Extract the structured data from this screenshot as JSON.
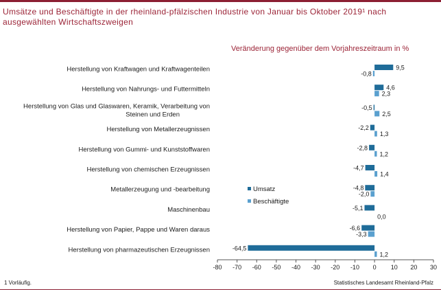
{
  "title": "Umsätze und Beschäftigte in der rheinland-pfälzischen Industrie von Januar bis Oktober 2019¹ nach ausgewählten Wirtschaftszweigen",
  "footnote": "1 Vorläufig.",
  "source": "Statistisches Landesamt Rheinland-Pfalz",
  "colors": {
    "accent": "#9b2336",
    "umsatz": "#1f6c99",
    "beschaeftigte": "#5aa0cf"
  },
  "chart_data": {
    "type": "bar",
    "orientation": "horizontal",
    "title": "Veränderung gegenüber dem Vorjahreszeitraum in %",
    "categories": [
      "Herstellung von Kraftwagen und Kraftwagenteilen",
      "Herstellung von Nahrungs- und Futtermitteln",
      "Herstellung von Glas und Glaswaren, Keramik, Verarbeitung von Steinen und Erden",
      "Herstellung von Metallerzeugnissen",
      "Herstellung von Gummi- und Kunststoffwaren",
      "Herstellung von chemischen Erzeugnissen",
      "Metallerzeugung und -bearbeitung",
      "Maschinenbau",
      "Herstellung von Papier, Pappe und Waren daraus",
      "Herstellung von pharmazeutischen Erzeugnissen"
    ],
    "series": [
      {
        "name": "Umsatz",
        "color": "#1f6c99",
        "values": [
          9.5,
          4.6,
          -0.5,
          -2.2,
          -2.8,
          -4.7,
          -4.8,
          -5.1,
          -6.6,
          -64.5
        ],
        "labels": [
          "9,5",
          "4,6",
          "-0,5",
          "-2,2",
          "-2,8",
          "-4,7",
          "-4,8",
          "-5,1",
          "-6,6",
          "-64,5"
        ]
      },
      {
        "name": "Beschäftigte",
        "color": "#5aa0cf",
        "values": [
          -0.8,
          2.3,
          2.5,
          1.3,
          1.2,
          1.4,
          -2.0,
          0.0,
          -3.3,
          1.2
        ],
        "labels": [
          "-0,8",
          "2,3",
          "2,5",
          "1,3",
          "1,2",
          "1,4",
          "-2,0",
          "0,0",
          "-3,3",
          "1,2"
        ]
      }
    ],
    "xlim": [
      -80,
      30
    ],
    "xticks": [
      -80,
      -70,
      -60,
      -50,
      -40,
      -30,
      -20,
      -10,
      0,
      10,
      20,
      30
    ],
    "legend": "center-right",
    "grid": false
  }
}
